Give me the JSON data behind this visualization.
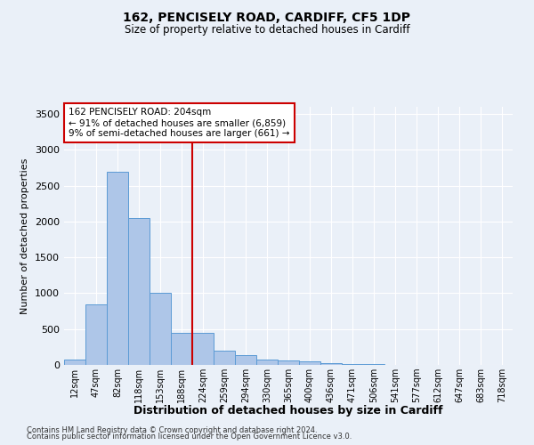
{
  "title1": "162, PENCISELY ROAD, CARDIFF, CF5 1DP",
  "title2": "Size of property relative to detached houses in Cardiff",
  "xlabel": "Distribution of detached houses by size in Cardiff",
  "ylabel": "Number of detached properties",
  "bar_labels": [
    "12sqm",
    "47sqm",
    "82sqm",
    "118sqm",
    "153sqm",
    "188sqm",
    "224sqm",
    "259sqm",
    "294sqm",
    "330sqm",
    "365sqm",
    "400sqm",
    "436sqm",
    "471sqm",
    "506sqm",
    "541sqm",
    "577sqm",
    "612sqm",
    "647sqm",
    "683sqm",
    "718sqm"
  ],
  "bar_values": [
    75,
    850,
    2700,
    2050,
    1000,
    450,
    450,
    200,
    135,
    70,
    60,
    45,
    25,
    15,
    8,
    5,
    4,
    3,
    2,
    1,
    1
  ],
  "bar_color": "#aec6e8",
  "bar_edge_color": "#5b9bd5",
  "highlight_index": 5,
  "vline_color": "#cc0000",
  "annotation_text": "162 PENCISELY ROAD: 204sqm\n← 91% of detached houses are smaller (6,859)\n9% of semi-detached houses are larger (661) →",
  "annotation_box_color": "#ffffff",
  "annotation_box_edge": "#cc0000",
  "ylim": [
    0,
    3600
  ],
  "yticks": [
    0,
    500,
    1000,
    1500,
    2000,
    2500,
    3000,
    3500
  ],
  "footer1": "Contains HM Land Registry data © Crown copyright and database right 2024.",
  "footer2": "Contains public sector information licensed under the Open Government Licence v3.0.",
  "bg_color": "#eaf0f8",
  "plot_bg_color": "#eaf0f8"
}
